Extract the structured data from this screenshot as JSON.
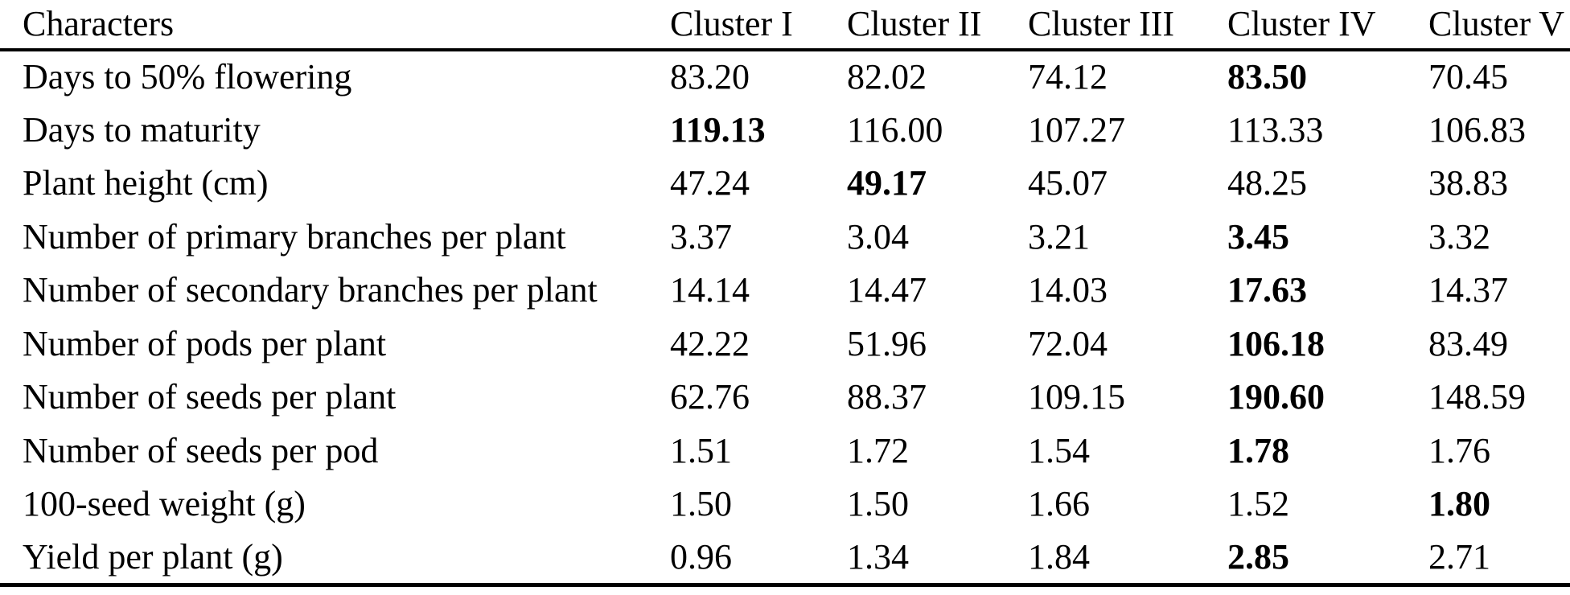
{
  "table": {
    "name": "cluster-mean-values-table",
    "text_color": "#000000",
    "background_color": "#ffffff",
    "rule_color": "#000000",
    "columns": [
      "Characters",
      "Cluster I",
      "Cluster II",
      "Cluster III",
      "Cluster IV",
      "Cluster V"
    ],
    "rows": [
      {
        "label": "Days to 50% flowering",
        "values": [
          "83.20",
          "82.02",
          "74.12",
          "83.50",
          "70.45"
        ],
        "bold_index": 3
      },
      {
        "label": "Days to maturity",
        "values": [
          "119.13",
          "116.00",
          "107.27",
          "113.33",
          "106.83"
        ],
        "bold_index": 0
      },
      {
        "label": "Plant height (cm)",
        "values": [
          "47.24",
          "49.17",
          "45.07",
          "48.25",
          "38.83"
        ],
        "bold_index": 1
      },
      {
        "label": "Number of primary branches per plant",
        "values": [
          "3.37",
          "3.04",
          "3.21",
          "3.45",
          "3.32"
        ],
        "bold_index": 3
      },
      {
        "label": "Number of secondary branches per plant",
        "values": [
          "14.14",
          "14.47",
          "14.03",
          "17.63",
          "14.37"
        ],
        "bold_index": 3
      },
      {
        "label": "Number of pods per plant",
        "values": [
          "42.22",
          "51.96",
          "72.04",
          "106.18",
          "83.49"
        ],
        "bold_index": 3
      },
      {
        "label": "Number of seeds per plant",
        "values": [
          "62.76",
          "88.37",
          "109.15",
          "190.60",
          "148.59"
        ],
        "bold_index": 3
      },
      {
        "label": "Number of seeds per pod",
        "values": [
          "1.51",
          "1.72",
          "1.54",
          "1.78",
          "1.76"
        ],
        "bold_index": 3
      },
      {
        "label": "100-seed weight (g)",
        "values": [
          "1.50",
          "1.50",
          "1.66",
          "1.52",
          "1.80"
        ],
        "bold_index": 4
      },
      {
        "label": "Yield per plant (g)",
        "values": [
          "0.96",
          "1.34",
          "1.84",
          "2.85",
          "2.71"
        ],
        "bold_index": 3
      }
    ]
  }
}
